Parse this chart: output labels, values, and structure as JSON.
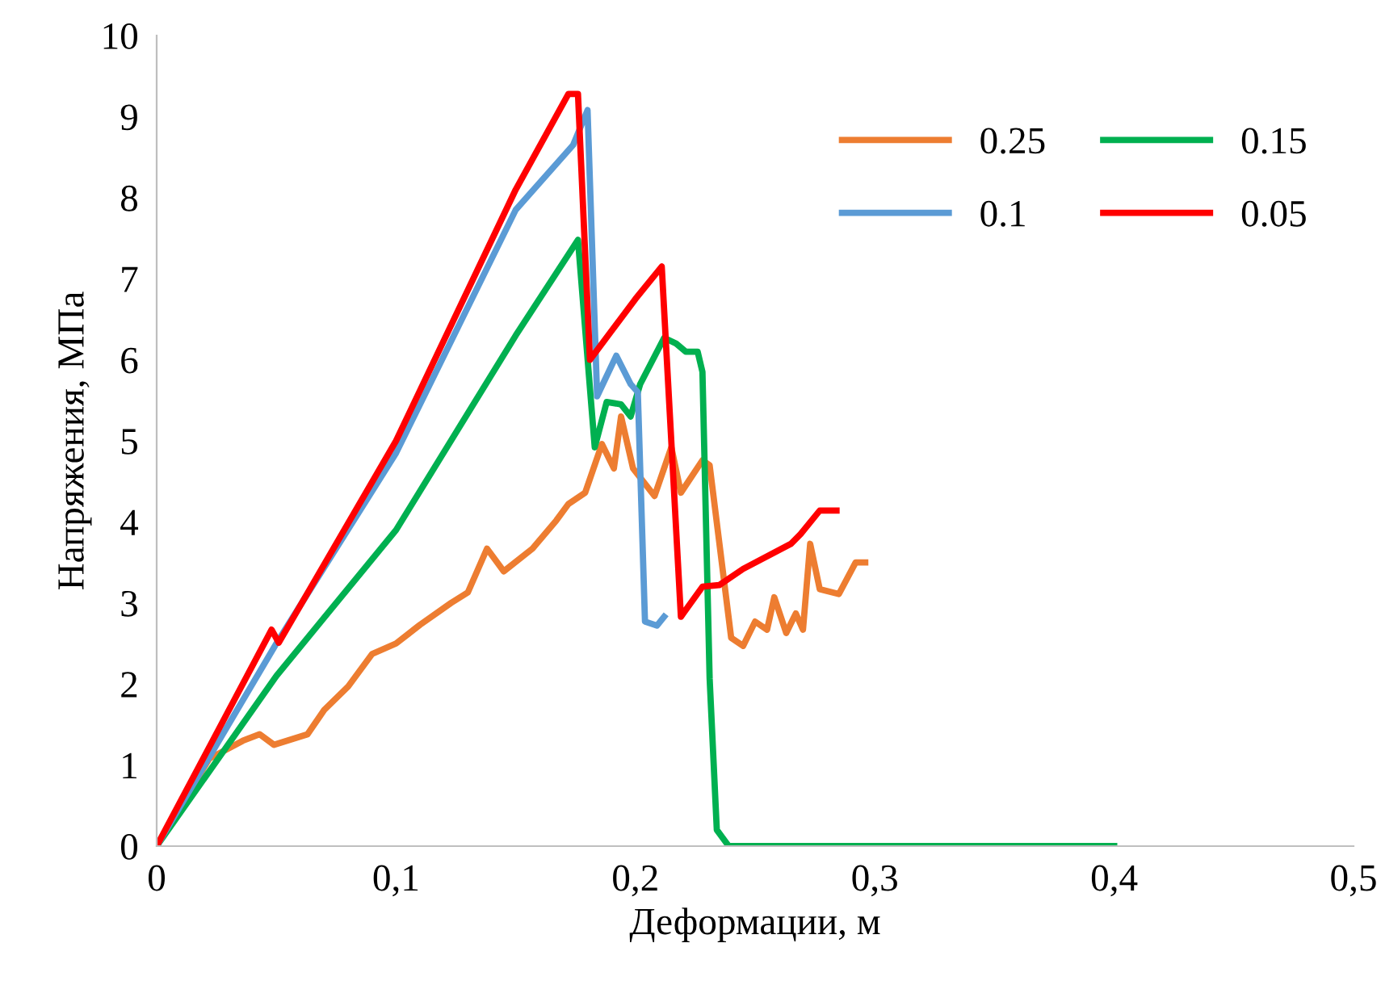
{
  "chart_data": {
    "type": "line",
    "xlabel": "Деформации, м",
    "ylabel": "Напряжения, МПа",
    "xlim": [
      0,
      0.5
    ],
    "xticks": [
      {
        "value": 0,
        "label": "0"
      },
      {
        "value": 0.1,
        "label": "0,1"
      },
      {
        "value": 0.2,
        "label": "0,2"
      },
      {
        "value": 0.3,
        "label": "0,3"
      },
      {
        "value": 0.4,
        "label": "0,4"
      },
      {
        "value": 0.5,
        "label": "0,5"
      }
    ],
    "ylim": [
      0,
      10
    ],
    "yticks": [
      0,
      1,
      2,
      3,
      4,
      5,
      6,
      7,
      8,
      9,
      10
    ],
    "grid": false,
    "legend": "top right",
    "marker": "none",
    "line_style": "solid",
    "series": [
      {
        "name": "0.25",
        "color": "#ed7d31",
        "x": [
          0,
          0.022,
          0.036,
          0.043,
          0.049,
          0.063,
          0.07,
          0.08,
          0.09,
          0.1,
          0.11,
          0.123,
          0.13,
          0.138,
          0.145,
          0.157,
          0.167,
          0.172,
          0.179,
          0.186,
          0.191,
          0.194,
          0.199,
          0.208,
          0.215,
          0.219,
          0.228,
          0.231,
          0.24,
          0.245,
          0.25,
          0.255,
          0.258,
          0.263,
          0.267,
          0.27,
          0.273,
          0.277,
          0.285,
          0.292,
          0.296
        ],
        "values": [
          0,
          1.08,
          1.3,
          1.38,
          1.25,
          1.38,
          1.68,
          1.97,
          2.37,
          2.5,
          2.73,
          3.0,
          3.13,
          3.67,
          3.39,
          3.67,
          4.02,
          4.22,
          4.36,
          4.96,
          4.66,
          5.3,
          4.66,
          4.32,
          4.92,
          4.36,
          4.76,
          4.7,
          2.57,
          2.47,
          2.77,
          2.67,
          3.07,
          2.63,
          2.87,
          2.67,
          3.73,
          3.17,
          3.11,
          3.5,
          3.5
        ]
      },
      {
        "name": "0.15",
        "color": "#00b050",
        "x": [
          0,
          0.05,
          0.1,
          0.15,
          0.176,
          0.183,
          0.188,
          0.194,
          0.198,
          0.202,
          0.212,
          0.217,
          0.221,
          0.226,
          0.228,
          0.231,
          0.234,
          0.239,
          0.4
        ],
        "values": [
          0,
          2.1,
          3.9,
          6.3,
          7.48,
          4.92,
          5.48,
          5.45,
          5.3,
          5.7,
          6.27,
          6.2,
          6.1,
          6.1,
          5.85,
          2.07,
          0.2,
          0,
          0
        ]
      },
      {
        "name": "0.1",
        "color": "#5b9bd5",
        "x": [
          0,
          0.05,
          0.1,
          0.15,
          0.174,
          0.18,
          0.184,
          0.192,
          0.198,
          0.201,
          0.204,
          0.209,
          0.212
        ],
        "values": [
          0,
          2.5,
          4.85,
          7.85,
          8.65,
          9.08,
          5.55,
          6.05,
          5.7,
          5.6,
          2.77,
          2.72,
          2.83
        ]
      },
      {
        "name": "0.05",
        "color": "#ff0000",
        "x": [
          0,
          0.048,
          0.051,
          0.1,
          0.15,
          0.172,
          0.176,
          0.181,
          0.2,
          0.211,
          0.219,
          0.228,
          0.235,
          0.245,
          0.265,
          0.269,
          0.277,
          0.284
        ],
        "values": [
          0,
          2.67,
          2.51,
          5.0,
          8.1,
          9.28,
          9.28,
          6.0,
          6.75,
          7.15,
          2.83,
          3.2,
          3.22,
          3.42,
          3.73,
          3.85,
          4.14,
          4.14
        ]
      }
    ]
  }
}
